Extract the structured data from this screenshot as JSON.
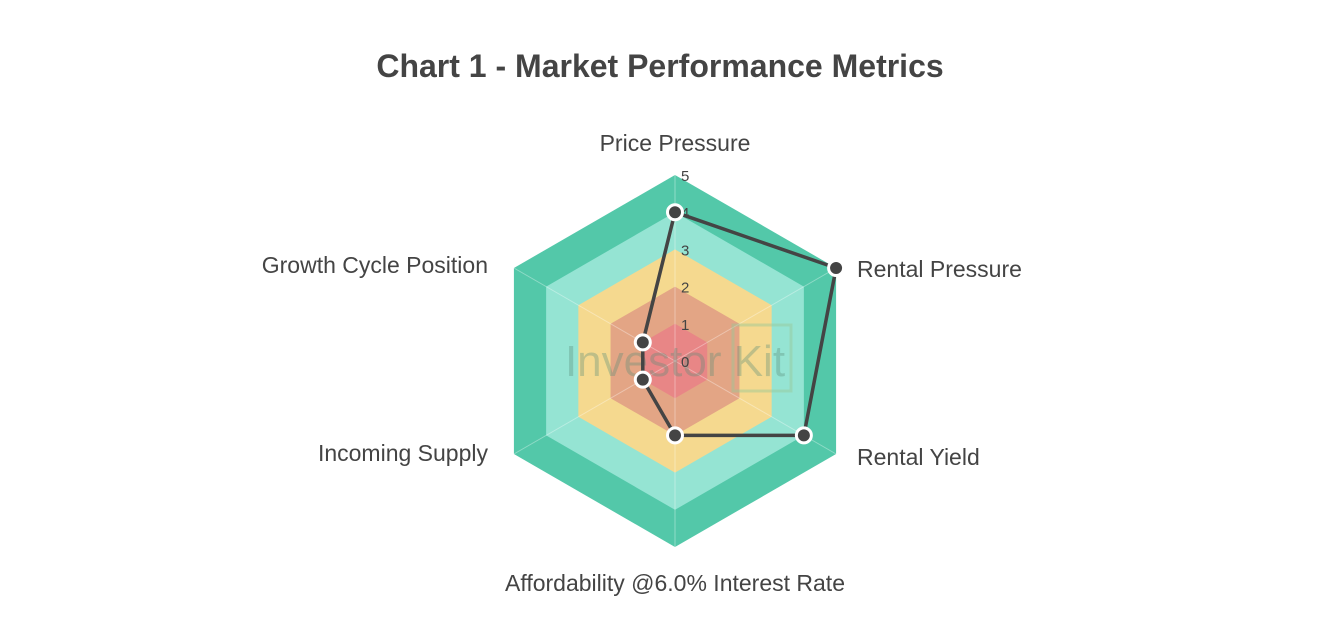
{
  "chart_data": {
    "type": "radar",
    "title": "Chart 1 - Market Performance Metrics",
    "categories": [
      "Price Pressure",
      "Rental Pressure",
      "Rental Yield",
      "Affordability @6.0% Interest Rate",
      "Incoming Supply",
      "Growth Cycle Position"
    ],
    "values": [
      4,
      5,
      4,
      2,
      1,
      1
    ],
    "rlim": [
      0,
      5
    ],
    "ticks": [
      "0",
      "1",
      "2",
      "3",
      "4",
      "5"
    ],
    "band_colors": [
      "#e88686",
      "#e3a585",
      "#f5d98f",
      "#95e4d3",
      "#53c8a9"
    ],
    "line_color": "#444444",
    "legend": "none",
    "watermark": "Investor Kit"
  }
}
